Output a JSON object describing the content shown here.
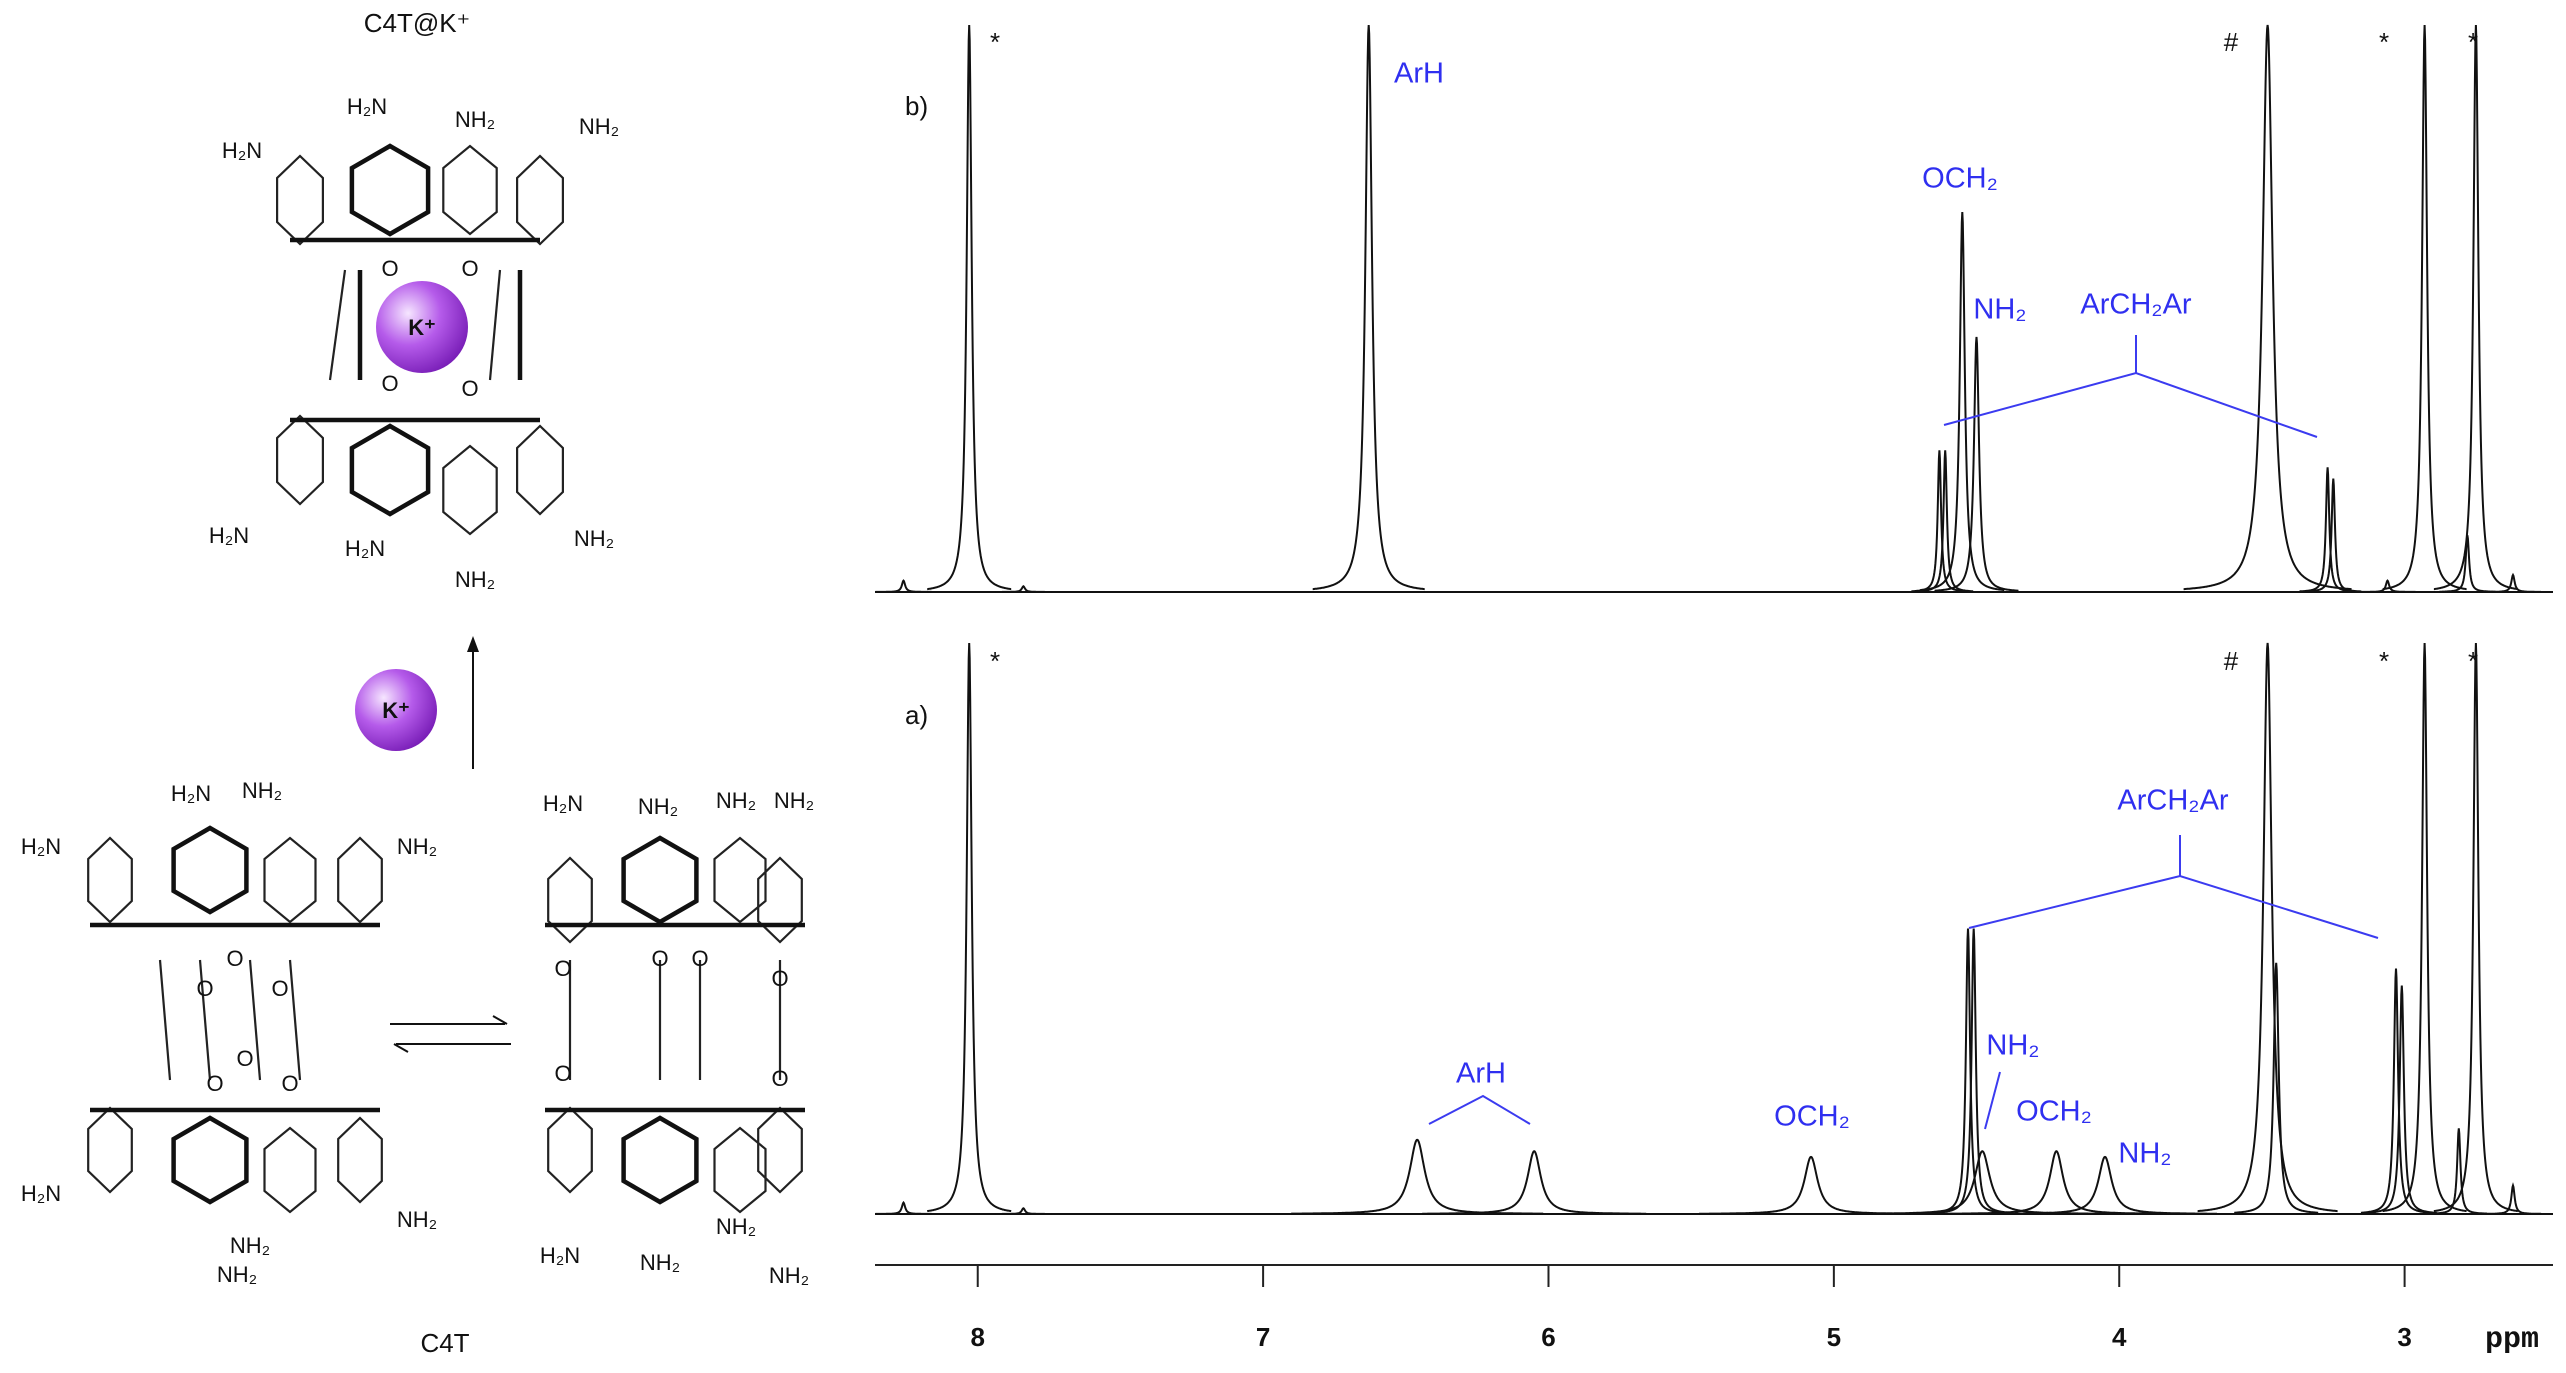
{
  "structures": {
    "title": "C4T@K⁺",
    "caption": "C4T",
    "ions": [
      "K⁺",
      "K⁺"
    ],
    "complex_labels": [
      "H₂N",
      "NH₂",
      "NH₂",
      "H₂N",
      "H₂N",
      "H₂N",
      "NH₂",
      "NH₂",
      "O",
      "O",
      "O",
      "O"
    ],
    "cone_labels": [
      "H₂N",
      "NH₂",
      "H₂N",
      "NH₂",
      "H₂N",
      "NH₂",
      "NH₂",
      "NH₂",
      "O",
      "O",
      "O",
      "O",
      "O",
      "O"
    ],
    "open_labels": [
      "H₂N",
      "NH₂",
      "NH₂",
      "NH₂",
      "H₂N",
      "NH₂",
      "NH₂",
      "NH₂",
      "O",
      "O",
      "O",
      "O",
      "O",
      "O"
    ]
  },
  "chart_data": {
    "type": "nmr",
    "xlabel": "ppm",
    "xlim": [
      8.36,
      2.48
    ],
    "xticks": [
      8,
      7,
      6,
      5,
      4,
      3
    ],
    "ylim": [
      0,
      100
    ],
    "series": [
      {
        "name": "b)",
        "color": "#111111",
        "x": [
          8.26,
          8.03,
          7.84,
          6.63,
          4.63,
          4.61,
          4.55,
          4.5,
          3.48,
          3.27,
          3.25,
          3.06,
          2.93,
          2.78,
          2.75,
          2.62
        ],
        "values": [
          2,
          100,
          1,
          100,
          25,
          25,
          67,
          45,
          100,
          22,
          20,
          2,
          100,
          10,
          100,
          3
        ],
        "annotations": [
          "*",
          "ArH",
          "#",
          "*",
          "*",
          "OCH₂",
          "NH₂",
          "ArCH₂Ar"
        ]
      },
      {
        "name": "a)",
        "color": "#111111",
        "x": [
          8.26,
          8.03,
          7.84,
          6.46,
          6.05,
          5.08,
          4.53,
          4.51,
          4.48,
          4.22,
          4.05,
          3.48,
          3.45,
          3.03,
          3.01,
          2.93,
          2.81,
          2.75,
          2.62
        ],
        "values": [
          2,
          100,
          1,
          13,
          11,
          10,
          50,
          50,
          11,
          11,
          10,
          100,
          44,
          43,
          40,
          100,
          15,
          100,
          5
        ],
        "annotations": [
          "*",
          "#",
          "*",
          "*",
          "ArH",
          "OCH₂",
          "NH₂",
          "OCH₂",
          "NH₂",
          "ArCH₂Ar"
        ]
      }
    ]
  }
}
